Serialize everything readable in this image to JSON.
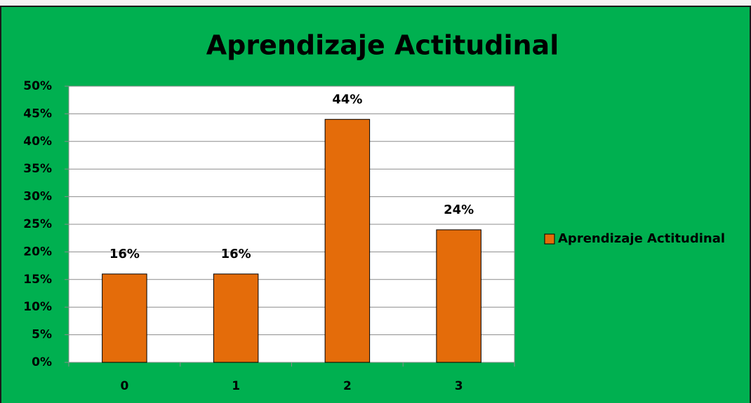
{
  "chart_data": {
    "type": "bar",
    "title": "Aprendizaje Actitudinal",
    "categories": [
      "0",
      "1",
      "2",
      "3"
    ],
    "series": [
      {
        "name": "Aprendizaje Actitudinal",
        "color": "#e46c0a",
        "values": [
          16,
          16,
          44,
          24
        ],
        "value_labels": [
          "16%",
          "16%",
          "44%",
          "24%"
        ]
      }
    ],
    "ylim": [
      0,
      50
    ],
    "yticks": [
      {
        "value": 0,
        "label": "0%"
      },
      {
        "value": 5,
        "label": "5%"
      },
      {
        "value": 10,
        "label": "10%"
      },
      {
        "value": 15,
        "label": "15%"
      },
      {
        "value": 20,
        "label": "20%"
      },
      {
        "value": 25,
        "label": "25%"
      },
      {
        "value": 30,
        "label": "30%"
      },
      {
        "value": 35,
        "label": "35%"
      },
      {
        "value": 40,
        "label": "40%"
      },
      {
        "value": 45,
        "label": "45%"
      },
      {
        "value": 50,
        "label": "50%"
      }
    ],
    "grid": true,
    "legend": "right"
  }
}
